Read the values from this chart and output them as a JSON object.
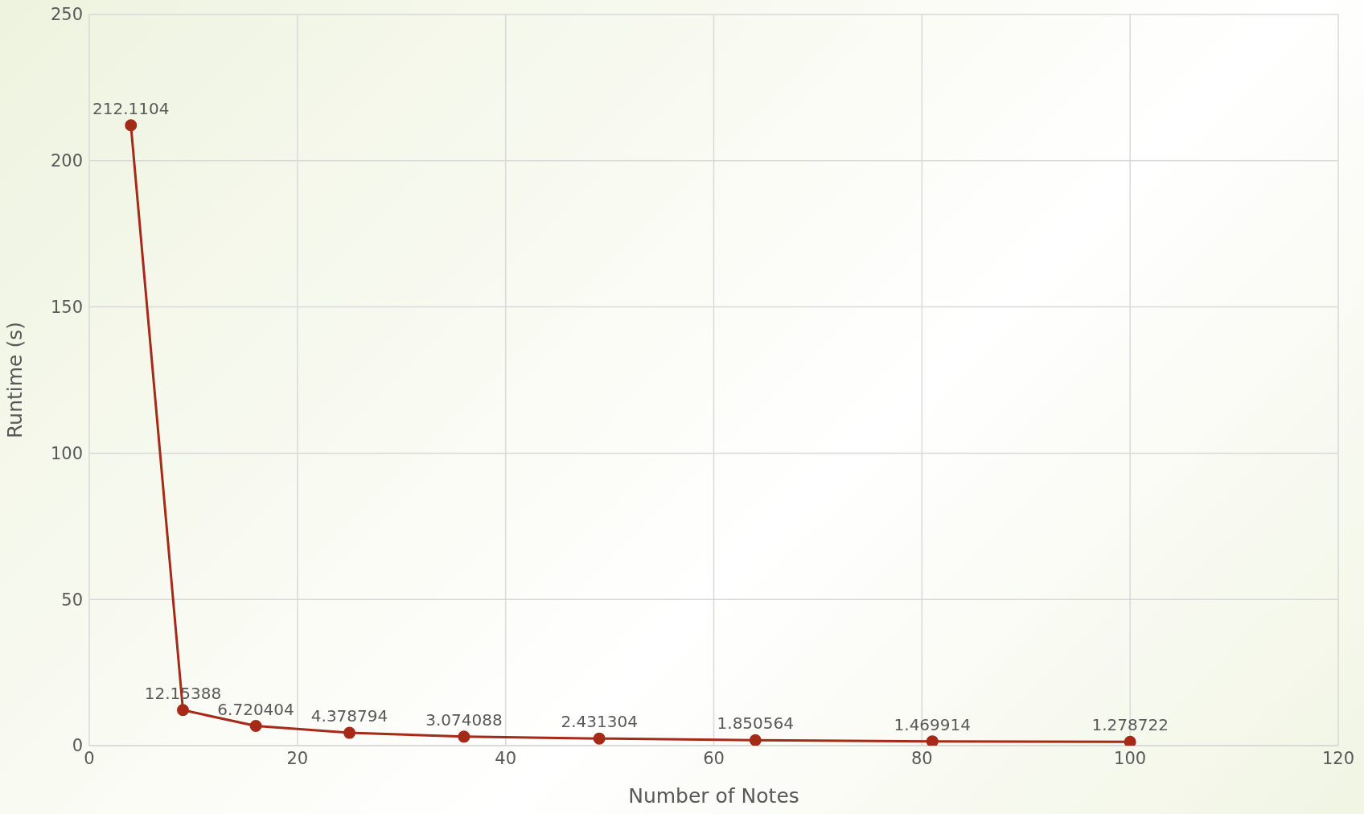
{
  "chart_data": {
    "type": "line",
    "xlabel": "Number of Notes",
    "ylabel": "Runtime (s)",
    "x": [
      4,
      9,
      16,
      25,
      36,
      49,
      64,
      81,
      100
    ],
    "series": [
      {
        "color": "#a52a17",
        "values": [
          212.1104,
          12.15388,
          6.720404,
          4.378794,
          3.074088,
          2.431304,
          1.850564,
          1.469914,
          1.278722
        ]
      }
    ],
    "xlim": [
      0,
      120
    ],
    "xticks": [
      0,
      20,
      40,
      60,
      80,
      100,
      120
    ],
    "ylim": [
      0,
      250
    ],
    "yticks": [
      0,
      50,
      100,
      150,
      200,
      250
    ],
    "grid": true,
    "marker": "circle",
    "data_labels": true,
    "legend": false
  }
}
